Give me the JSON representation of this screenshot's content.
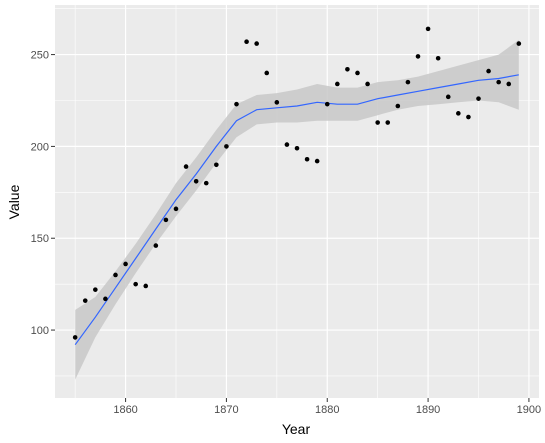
{
  "chart_data": {
    "type": "scatter",
    "xlabel": "Year",
    "ylabel": "Value",
    "xlim": [
      1853,
      1901
    ],
    "ylim": [
      63,
      277
    ],
    "x_ticks": [
      1860,
      1870,
      1880,
      1890,
      1900
    ],
    "x_minor_ticks": [
      1855,
      1865,
      1875,
      1885,
      1895
    ],
    "y_ticks": [
      100,
      150,
      200,
      250
    ],
    "y_minor_ticks": [
      75,
      125,
      175,
      225,
      275
    ],
    "grid": true,
    "colors": {
      "panel": "#ebebeb",
      "grid": "#ffffff",
      "points": "#000000",
      "smooth_line": "#3366ff",
      "confidence_band": "#c8c8c8"
    },
    "series": [
      {
        "points": [
          [
            1855,
            96
          ],
          [
            1856,
            116
          ],
          [
            1857,
            122
          ],
          [
            1858,
            117
          ],
          [
            1859,
            130
          ],
          [
            1860,
            136
          ],
          [
            1861,
            125
          ],
          [
            1862,
            124
          ],
          [
            1863,
            146
          ],
          [
            1864,
            160
          ],
          [
            1865,
            166
          ],
          [
            1866,
            189
          ],
          [
            1867,
            181
          ],
          [
            1868,
            180
          ],
          [
            1869,
            190
          ],
          [
            1870,
            200
          ],
          [
            1871,
            223
          ],
          [
            1872,
            257
          ],
          [
            1873,
            256
          ],
          [
            1874,
            240
          ],
          [
            1875,
            224
          ],
          [
            1876,
            201
          ],
          [
            1877,
            199
          ],
          [
            1878,
            193
          ],
          [
            1879,
            192
          ],
          [
            1880,
            223
          ],
          [
            1881,
            234
          ],
          [
            1882,
            242
          ],
          [
            1883,
            240
          ],
          [
            1884,
            234
          ],
          [
            1885,
            213
          ],
          [
            1886,
            213
          ],
          [
            1887,
            222
          ],
          [
            1888,
            235
          ],
          [
            1889,
            249
          ],
          [
            1890,
            264
          ],
          [
            1891,
            248
          ],
          [
            1892,
            227
          ],
          [
            1893,
            218
          ],
          [
            1894,
            216
          ],
          [
            1895,
            226
          ],
          [
            1896,
            241
          ],
          [
            1897,
            235
          ],
          [
            1898,
            234
          ],
          [
            1899,
            256
          ]
        ]
      }
    ],
    "smooth": {
      "x": [
        1855,
        1857,
        1859,
        1861,
        1863,
        1865,
        1867,
        1869,
        1871,
        1873,
        1875,
        1877,
        1879,
        1881,
        1883,
        1885,
        1887,
        1889,
        1891,
        1893,
        1895,
        1897,
        1899
      ],
      "y": [
        92,
        107,
        123,
        139,
        155,
        171,
        185,
        200,
        214,
        220,
        221,
        222,
        224,
        223,
        223,
        226,
        228,
        230,
        232,
        234,
        236,
        237,
        239
      ],
      "lower": [
        73,
        96,
        114,
        131,
        147,
        162,
        176,
        191,
        205,
        212,
        213,
        213,
        214,
        214,
        214,
        217,
        220,
        222,
        223,
        224,
        225,
        224,
        220
      ],
      "upper": [
        111,
        118,
        132,
        147,
        163,
        180,
        194,
        209,
        223,
        228,
        229,
        231,
        234,
        232,
        232,
        235,
        236,
        238,
        241,
        244,
        247,
        250,
        258
      ]
    }
  }
}
